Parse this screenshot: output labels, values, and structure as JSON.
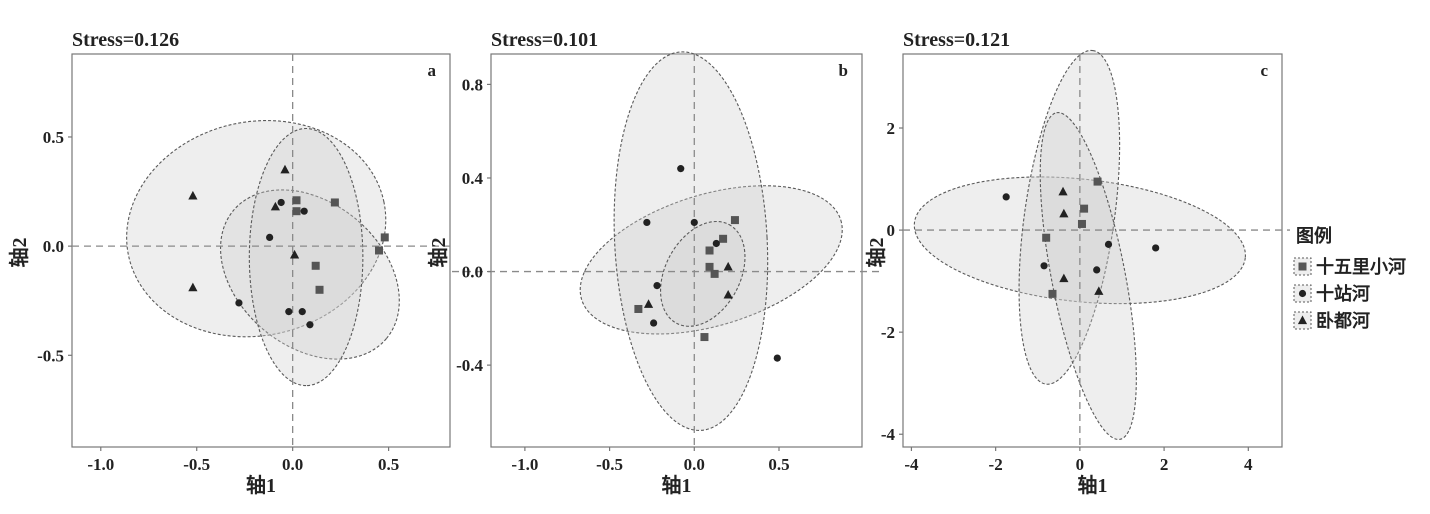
{
  "colors": {
    "ellipse_fill": "#cfcfcf",
    "ellipse_stroke": "#5a5a5a",
    "point": "#222222",
    "square": "#555555",
    "ref_line": "#8a8a8a",
    "frame": "#777777"
  },
  "legend": {
    "title": "图例",
    "items": [
      {
        "label": "十五里小河",
        "marker": "square"
      },
      {
        "label": "十站河",
        "marker": "circle"
      },
      {
        "label": "卧都河",
        "marker": "triangle"
      }
    ]
  },
  "chart_data": [
    {
      "type": "scatter",
      "title": "Stress=0.126",
      "panel": "a",
      "xlabel": "轴1",
      "ylabel": "轴2",
      "xlim": [
        -1.15,
        0.82
      ],
      "ylim": [
        -0.92,
        0.88
      ],
      "xticks": [
        -1.0,
        -0.5,
        0.0,
        0.5
      ],
      "xtick_labels": [
        "-1.0",
        "-0.5",
        "0.0",
        "0.5"
      ],
      "yticks": [
        0.5,
        0.0,
        -0.5
      ],
      "ytick_labels": [
        "0.5",
        "0.0",
        "-0.5"
      ],
      "ellipses": [
        {
          "group": "十五里小河",
          "cx": -0.19,
          "cy": 0.08,
          "rx": 0.68,
          "ry": 0.49,
          "angle": 12
        },
        {
          "group": "十站河",
          "cx": 0.09,
          "cy": -0.13,
          "rx": 0.52,
          "ry": 0.33,
          "angle": -40
        },
        {
          "group": "卧都河",
          "cx": 0.07,
          "cy": -0.05,
          "rx": 0.67,
          "ry": 0.26,
          "angle": -90
        }
      ],
      "series": [
        {
          "name": "十五里小河",
          "marker": "square",
          "points": [
            [
              0.02,
              0.21
            ],
            [
              0.02,
              0.16
            ],
            [
              0.22,
              0.2
            ],
            [
              0.48,
              0.04
            ],
            [
              0.45,
              -0.02
            ],
            [
              0.12,
              -0.09
            ],
            [
              0.14,
              -0.2
            ]
          ]
        },
        {
          "name": "十站河",
          "marker": "circle",
          "points": [
            [
              -0.06,
              0.2
            ],
            [
              0.06,
              0.16
            ],
            [
              -0.12,
              0.04
            ],
            [
              -0.28,
              -0.26
            ],
            [
              -0.02,
              -0.3
            ],
            [
              0.05,
              -0.3
            ],
            [
              0.09,
              -0.36
            ]
          ]
        },
        {
          "name": "卧都河",
          "marker": "triangle",
          "points": [
            [
              -0.52,
              0.23
            ],
            [
              -0.52,
              -0.19
            ],
            [
              -0.04,
              0.35
            ],
            [
              -0.09,
              0.18
            ],
            [
              0.01,
              -0.04
            ]
          ]
        }
      ]
    },
    {
      "type": "scatter",
      "title": "Stress=0.101",
      "panel": "b",
      "xlabel": "轴1",
      "ylabel": "轴2",
      "xlim": [
        -1.2,
        0.99
      ],
      "ylim": [
        -0.75,
        0.93
      ],
      "xticks": [
        -1.0,
        -0.5,
        0.0,
        0.5
      ],
      "xtick_labels": [
        "-1.0",
        "-0.5",
        "0.0",
        "0.5"
      ],
      "yticks": [
        0.8,
        0.4,
        0.0,
        -0.4
      ],
      "ytick_labels": [
        "0.8",
        "0.4",
        "0.0",
        "-0.4"
      ],
      "ellipses": [
        {
          "group": "十五里小河",
          "cx": 0.1,
          "cy": 0.05,
          "rx": 0.8,
          "ry": 0.28,
          "angle": 17
        },
        {
          "group": "十站河",
          "cx": -0.02,
          "cy": 0.13,
          "rx": 0.45,
          "ry": 0.81,
          "angle": 3
        },
        {
          "group": "卧都河",
          "cx": 0.05,
          "cy": -0.01,
          "rx": 0.33,
          "ry": 0.16,
          "angle": 62
        }
      ],
      "series": [
        {
          "name": "十五里小河",
          "marker": "square",
          "points": [
            [
              0.24,
              0.22
            ],
            [
              0.17,
              0.14
            ],
            [
              0.09,
              0.09
            ],
            [
              0.09,
              0.02
            ],
            [
              0.12,
              -0.01
            ],
            [
              -0.33,
              -0.16
            ],
            [
              0.06,
              -0.28
            ]
          ]
        },
        {
          "name": "十站河",
          "marker": "circle",
          "points": [
            [
              -0.08,
              0.44
            ],
            [
              -0.28,
              0.21
            ],
            [
              0.0,
              0.21
            ],
            [
              0.13,
              0.12
            ],
            [
              -0.22,
              -0.06
            ],
            [
              -0.24,
              -0.22
            ],
            [
              0.49,
              -0.37
            ]
          ]
        },
        {
          "name": "卧都河",
          "marker": "triangle",
          "points": [
            [
              0.2,
              0.02
            ],
            [
              -0.27,
              -0.14
            ],
            [
              0.2,
              -0.1
            ]
          ]
        }
      ]
    },
    {
      "type": "scatter",
      "title": "Stress=0.121",
      "panel": "c",
      "xlabel": "轴1",
      "ylabel": "轴2",
      "xlim": [
        -4.2,
        4.8
      ],
      "ylim": [
        -4.25,
        3.45
      ],
      "xticks": [
        -4,
        -2,
        0,
        2,
        4
      ],
      "xtick_labels": [
        "-4",
        "-2",
        "0",
        "2",
        "4"
      ],
      "yticks": [
        2,
        0,
        -2,
        -4
      ],
      "ytick_labels": [
        "2",
        "0",
        "-2",
        "-4"
      ],
      "ellipses": [
        {
          "group": "十五里小河",
          "cx": 0.0,
          "cy": -0.2,
          "rx": 3.95,
          "ry": 1.2,
          "angle": -6
        },
        {
          "group": "十站河",
          "cx": -0.25,
          "cy": 0.25,
          "rx": 4.0,
          "ry": 0.88,
          "angle": 82
        },
        {
          "group": "卧都河",
          "cx": 0.2,
          "cy": -0.9,
          "rx": 3.95,
          "ry": 0.72,
          "angle": 101
        }
      ],
      "series": [
        {
          "name": "十五里小河",
          "marker": "square",
          "points": [
            [
              0.42,
              0.95
            ],
            [
              0.1,
              0.42
            ],
            [
              0.05,
              0.12
            ],
            [
              -0.8,
              -0.15
            ],
            [
              -0.65,
              -1.25
            ]
          ]
        },
        {
          "name": "十站河",
          "marker": "circle",
          "points": [
            [
              -1.75,
              0.65
            ],
            [
              1.8,
              -0.35
            ],
            [
              0.68,
              -0.28
            ],
            [
              -0.85,
              -0.7
            ],
            [
              0.4,
              -0.78
            ]
          ]
        },
        {
          "name": "卧都河",
          "marker": "triangle",
          "points": [
            [
              -0.4,
              0.75
            ],
            [
              -0.38,
              0.32
            ],
            [
              -0.38,
              -0.95
            ],
            [
              0.45,
              -1.2
            ]
          ]
        }
      ]
    }
  ]
}
